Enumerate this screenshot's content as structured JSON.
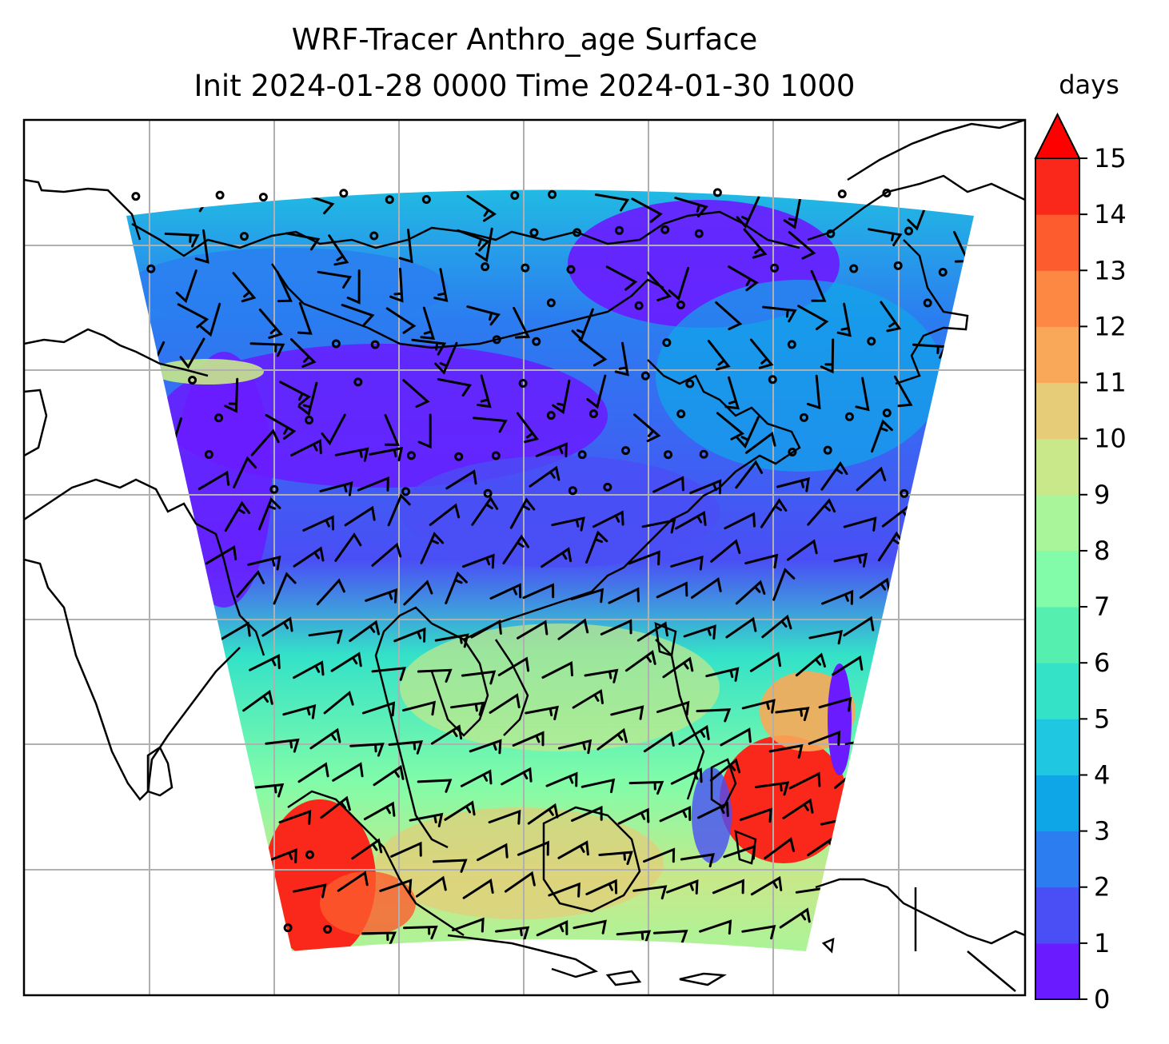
{
  "chart_data": {
    "type": "heatmap",
    "title": "WRF-Tracer Anthro_age Surface",
    "subtitle": "Init 2024-01-28 0000 Time 2024-01-30 1000",
    "colorbar": {
      "label": "days",
      "min": 0,
      "max": 15,
      "extend": "max",
      "ticks": [
        "0",
        "1",
        "2",
        "3",
        "4",
        "5",
        "6",
        "7",
        "8",
        "9",
        "10",
        "11",
        "12",
        "13",
        "14",
        "15"
      ],
      "colors": [
        "#6a1bff",
        "#4a4ef5",
        "#2b7df0",
        "#0fa6e8",
        "#1fc8e0",
        "#34e2c8",
        "#55f0b0",
        "#82fca8",
        "#a8f59a",
        "#c8e88a",
        "#e6cc78",
        "#f8a858",
        "#fc8844",
        "#fd5d2e",
        "#f9281a"
      ],
      "extend_color": "#ff0000"
    },
    "grid": true,
    "overlays": [
      "coastlines",
      "wind-barbs"
    ]
  }
}
